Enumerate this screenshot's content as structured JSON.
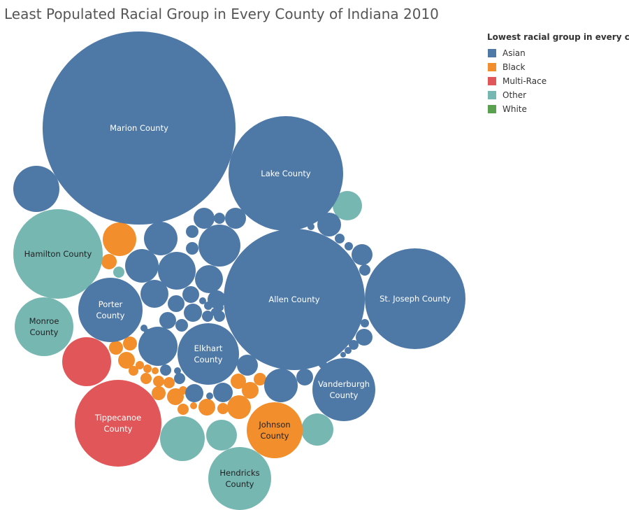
{
  "chart_data": {
    "type": "packed-bubble",
    "title": "Least Populated Racial Group in Every County of Indiana 2010",
    "legend": {
      "title": "Lowest racial group in every county",
      "placement": "top-right",
      "items": [
        {
          "label": "Asian",
          "color": "#4e79a7"
        },
        {
          "label": "Black",
          "color": "#f28e2b"
        },
        {
          "label": "Multi-Race",
          "color": "#e15759"
        },
        {
          "label": "Other",
          "color": "#76b7b2"
        },
        {
          "label": "White",
          "color": "#59a14f"
        }
      ]
    },
    "labeled_bubbles": [
      {
        "county": "Marion County",
        "group": "Asian"
      },
      {
        "county": "Lake County",
        "group": "Asian"
      },
      {
        "county": "Allen County",
        "group": "Asian"
      },
      {
        "county": "St. Joseph County",
        "group": "Asian"
      },
      {
        "county": "Hamilton County",
        "group": "Other"
      },
      {
        "county": "Porter County",
        "group": "Asian"
      },
      {
        "county": "Monroe County",
        "group": "Other"
      },
      {
        "county": "Elkhart County",
        "group": "Asian"
      },
      {
        "county": "Vanderburgh County",
        "group": "Asian"
      },
      {
        "county": "Tippecanoe County",
        "group": "Multi-Race"
      },
      {
        "county": "Johnson County",
        "group": "Black"
      },
      {
        "county": "Hendricks County",
        "group": "Other"
      }
    ],
    "unlabeled_groups": [
      "Asian",
      "Other",
      "Asian",
      "Asian",
      "Asian",
      "Asian",
      "Asian",
      "Asian",
      "Asian",
      "Asian",
      "Asian",
      "Asian",
      "Black",
      "Black",
      "Other",
      "Asian",
      "Asian",
      "Asian",
      "Asian",
      "Asian",
      "Asian",
      "Asian",
      "Asian",
      "Asian",
      "Asian",
      "Asian",
      "Asian",
      "Asian",
      "Asian",
      "Asian",
      "Asian",
      "Asian",
      "Asian",
      "Asian",
      "Asian",
      "Asian",
      "Asian",
      "Asian",
      "Asian",
      "Asian",
      "Black",
      "Black",
      "Multi-Race",
      "Black",
      "Black",
      "Black",
      "Black",
      "Black",
      "Asian",
      "Black",
      "Black",
      "Black",
      "Asian",
      "Asian",
      "Black",
      "Black",
      "Black",
      "Black",
      "Black",
      "Black",
      "Black",
      "Asian",
      "Asian",
      "Asian",
      "Asian",
      "Black",
      "Black",
      "Black",
      "Black",
      "Black",
      "Asian",
      "Asian",
      "Asian",
      "Asian",
      "Other",
      "Other",
      "Other",
      "Asian",
      "Asian",
      "Asian"
    ]
  }
}
